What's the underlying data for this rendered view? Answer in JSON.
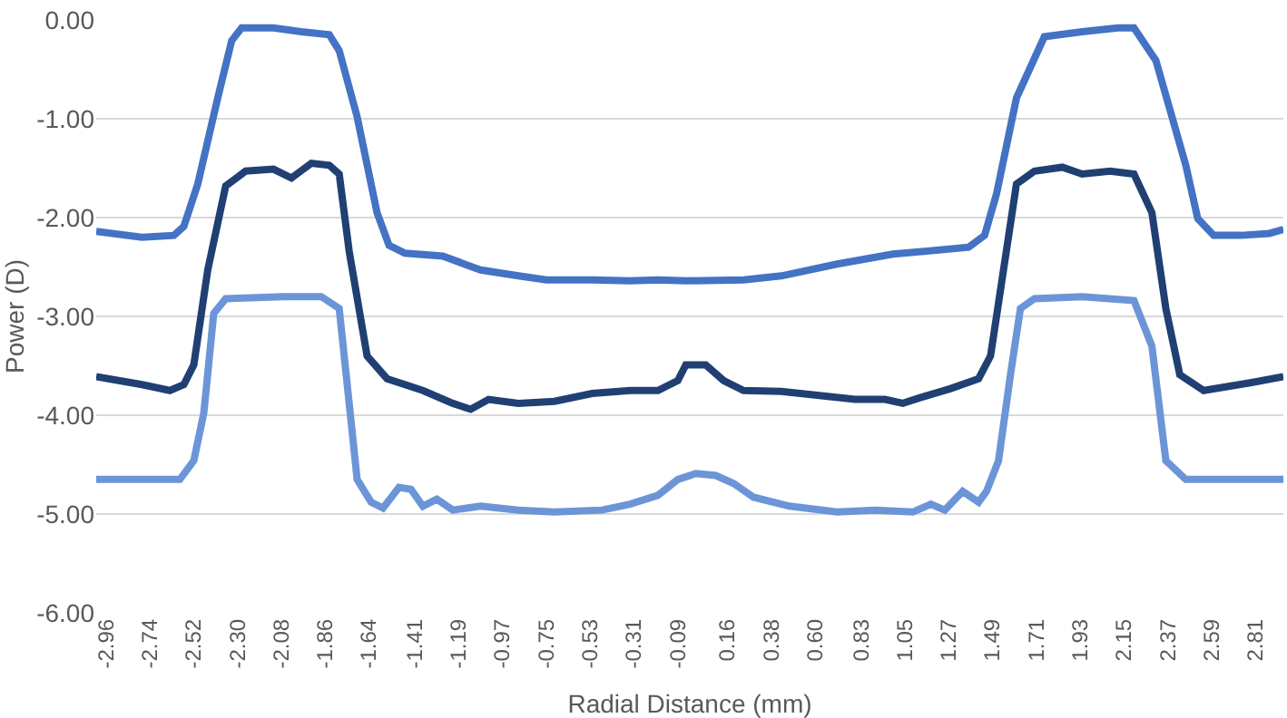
{
  "chart_data": {
    "type": "line",
    "xlabel": "Radial Distance (mm)",
    "ylabel": "Power (D)",
    "xlim": [
      -3.01,
      2.95
    ],
    "xticks": [
      {
        "value": -2.96,
        "label": "-2.96"
      },
      {
        "value": -2.74,
        "label": "-2.74"
      },
      {
        "value": -2.52,
        "label": "-2.52"
      },
      {
        "value": -2.3,
        "label": "-2.30"
      },
      {
        "value": -2.08,
        "label": "-2.08"
      },
      {
        "value": -1.86,
        "label": "-1.86"
      },
      {
        "value": -1.64,
        "label": "-1.64"
      },
      {
        "value": -1.41,
        "label": "-1.41"
      },
      {
        "value": -1.19,
        "label": "-1.19"
      },
      {
        "value": -0.97,
        "label": "-0.97"
      },
      {
        "value": -0.75,
        "label": "-0.75"
      },
      {
        "value": -0.53,
        "label": "-0.53"
      },
      {
        "value": -0.31,
        "label": "-0.31"
      },
      {
        "value": -0.09,
        "label": "-0.09"
      },
      {
        "value": 0.16,
        "label": "0.16"
      },
      {
        "value": 0.38,
        "label": "0.38"
      },
      {
        "value": 0.6,
        "label": "0.60"
      },
      {
        "value": 0.83,
        "label": "0.83"
      },
      {
        "value": 1.05,
        "label": "1.05"
      },
      {
        "value": 1.27,
        "label": "1.27"
      },
      {
        "value": 1.49,
        "label": "1.49"
      },
      {
        "value": 1.71,
        "label": "1.71"
      },
      {
        "value": 1.93,
        "label": "1.93"
      },
      {
        "value": 2.15,
        "label": "2.15"
      },
      {
        "value": 2.37,
        "label": "2.37"
      },
      {
        "value": 2.59,
        "label": "2.59"
      },
      {
        "value": 2.81,
        "label": "2.81"
      }
    ],
    "ylim": [
      -6.0,
      0.0
    ],
    "yticks": [
      {
        "value": 0,
        "label": "0.00"
      },
      {
        "value": -1,
        "label": "-1.00"
      },
      {
        "value": -2,
        "label": "-2.00"
      },
      {
        "value": -3,
        "label": "-3.00"
      },
      {
        "value": -4,
        "label": "-4.00"
      },
      {
        "value": -5,
        "label": "-5.00"
      },
      {
        "value": -6,
        "label": "-6.00"
      }
    ],
    "grid": "y",
    "marker": "none",
    "line_style": "solid",
    "series": [
      {
        "color": "#4472c4",
        "x": [
          -3.01,
          -2.78,
          -2.62,
          -2.57,
          -2.5,
          -2.4,
          -2.33,
          -2.28,
          -2.12,
          -1.98,
          -1.84,
          -1.79,
          -1.7,
          -1.6,
          -1.54,
          -1.46,
          -1.27,
          -1.08,
          -0.89,
          -0.75,
          -0.52,
          -0.33,
          -0.19,
          -0.05,
          0.24,
          0.43,
          0.71,
          0.99,
          1.37,
          1.45,
          1.51,
          1.61,
          1.75,
          1.94,
          2.12,
          2.2,
          2.31,
          2.46,
          2.52,
          2.6,
          2.74,
          2.88,
          2.95
        ],
        "values": [
          -2.14,
          -2.2,
          -2.18,
          -2.09,
          -1.66,
          -0.79,
          -0.21,
          -0.08,
          -0.08,
          -0.12,
          -0.15,
          -0.31,
          -0.98,
          -1.95,
          -2.28,
          -2.36,
          -2.39,
          -2.53,
          -2.59,
          -2.63,
          -2.63,
          -2.64,
          -2.63,
          -2.64,
          -2.63,
          -2.59,
          -2.47,
          -2.37,
          -2.3,
          -2.18,
          -1.76,
          -0.79,
          -0.17,
          -0.12,
          -0.08,
          -0.08,
          -0.41,
          -1.47,
          -2.01,
          -2.18,
          -2.18,
          -2.16,
          -2.12
        ]
      },
      {
        "color": "#203f73",
        "x": [
          -3.01,
          -2.78,
          -2.64,
          -2.57,
          -2.52,
          -2.45,
          -2.36,
          -2.26,
          -2.12,
          -2.03,
          -1.93,
          -1.84,
          -1.79,
          -1.74,
          -1.65,
          -1.55,
          -1.37,
          -1.22,
          -1.13,
          -1.04,
          -0.89,
          -0.71,
          -0.52,
          -0.33,
          -0.19,
          -0.09,
          -0.05,
          0.05,
          0.14,
          0.24,
          0.43,
          0.62,
          0.8,
          0.95,
          1.04,
          1.13,
          1.28,
          1.42,
          1.48,
          1.61,
          1.7,
          1.84,
          1.94,
          2.08,
          2.2,
          2.29,
          2.36,
          2.43,
          2.55,
          2.79,
          2.95
        ],
        "values": [
          -3.61,
          -3.69,
          -3.75,
          -3.69,
          -3.49,
          -2.53,
          -1.68,
          -1.53,
          -1.51,
          -1.6,
          -1.45,
          -1.47,
          -1.56,
          -2.34,
          -3.4,
          -3.63,
          -3.75,
          -3.88,
          -3.94,
          -3.84,
          -3.88,
          -3.86,
          -3.78,
          -3.75,
          -3.75,
          -3.65,
          -3.49,
          -3.49,
          -3.65,
          -3.75,
          -3.76,
          -3.8,
          -3.84,
          -3.84,
          -3.88,
          -3.82,
          -3.73,
          -3.63,
          -3.4,
          -1.66,
          -1.53,
          -1.49,
          -1.56,
          -1.53,
          -1.56,
          -1.95,
          -2.92,
          -3.59,
          -3.75,
          -3.67,
          -3.61
        ]
      },
      {
        "color": "#6c95d8",
        "x": [
          -3.01,
          -2.78,
          -2.59,
          -2.52,
          -2.47,
          -2.42,
          -2.36,
          -2.07,
          -1.88,
          -1.79,
          -1.74,
          -1.7,
          -1.63,
          -1.57,
          -1.49,
          -1.43,
          -1.37,
          -1.3,
          -1.22,
          -1.08,
          -0.89,
          -0.71,
          -0.47,
          -0.33,
          -0.19,
          -0.09,
          0.0,
          0.1,
          0.19,
          0.29,
          0.47,
          0.71,
          0.9,
          1.09,
          1.18,
          1.25,
          1.34,
          1.42,
          1.46,
          1.52,
          1.58,
          1.63,
          1.7,
          1.94,
          2.2,
          2.29,
          2.36,
          2.46,
          2.95
        ],
        "values": [
          -4.65,
          -4.65,
          -4.65,
          -4.46,
          -3.98,
          -2.97,
          -2.82,
          -2.8,
          -2.8,
          -2.92,
          -3.88,
          -4.65,
          -4.88,
          -4.94,
          -4.73,
          -4.75,
          -4.92,
          -4.85,
          -4.96,
          -4.92,
          -4.96,
          -4.98,
          -4.96,
          -4.9,
          -4.81,
          -4.65,
          -4.59,
          -4.61,
          -4.69,
          -4.83,
          -4.92,
          -4.98,
          -4.96,
          -4.98,
          -4.9,
          -4.96,
          -4.77,
          -4.88,
          -4.77,
          -4.46,
          -3.59,
          -2.92,
          -2.82,
          -2.8,
          -2.84,
          -3.3,
          -4.46,
          -4.65,
          -4.65
        ]
      }
    ]
  }
}
